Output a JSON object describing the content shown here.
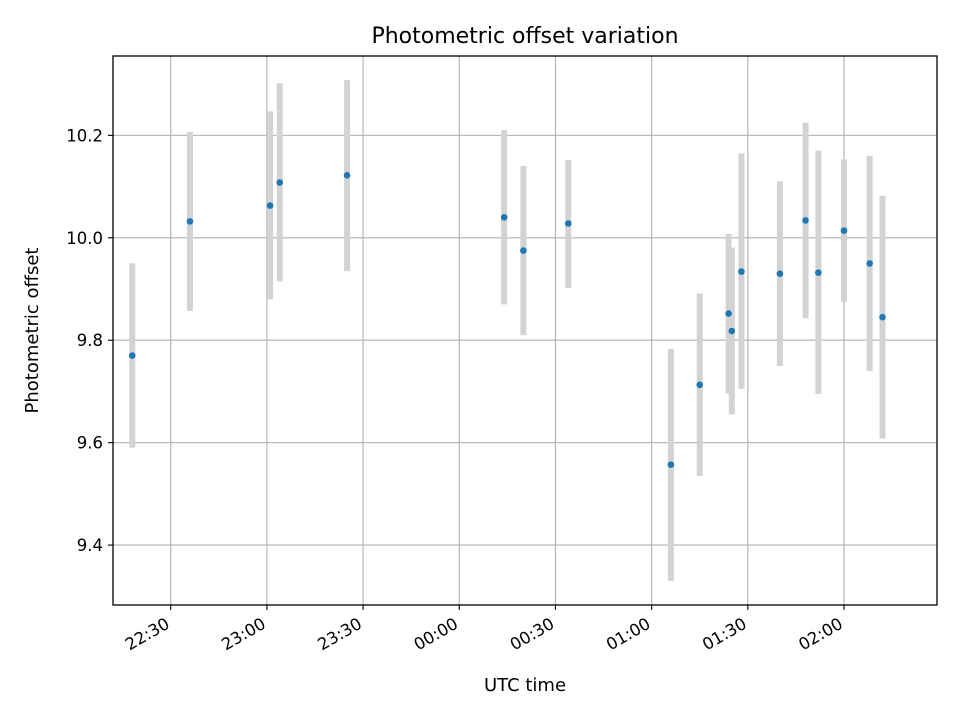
{
  "chart_data": {
    "type": "scatter",
    "title": "Photometric offset variation",
    "xlabel": "UTC time",
    "ylabel": "Photometric offset",
    "x_unit": "UTC time (HH:MM)",
    "xlim": [
      "22:12",
      "02:29"
    ],
    "ylim": [
      9.283,
      10.355
    ],
    "x_ticks": [
      "22:30",
      "23:00",
      "23:30",
      "00:00",
      "00:30",
      "01:00",
      "01:30",
      "02:00"
    ],
    "y_ticks": [
      "9.4",
      "9.6",
      "9.8",
      "10.0",
      "10.2"
    ],
    "grid": true,
    "point_color": "#1f77b4",
    "errorbar_color": "#d3d3d3",
    "points": [
      {
        "x": "22:18",
        "y": 9.77,
        "ylo": 9.59,
        "yhi": 9.95
      },
      {
        "x": "22:36",
        "y": 10.032,
        "ylo": 9.857,
        "yhi": 10.207
      },
      {
        "x": "23:01",
        "y": 10.063,
        "ylo": 9.88,
        "yhi": 10.247
      },
      {
        "x": "23:04",
        "y": 10.108,
        "ylo": 9.915,
        "yhi": 10.302
      },
      {
        "x": "23:25",
        "y": 10.122,
        "ylo": 9.935,
        "yhi": 10.308
      },
      {
        "x": "00:14",
        "y": 10.04,
        "ylo": 9.87,
        "yhi": 10.21
      },
      {
        "x": "00:20",
        "y": 9.975,
        "ylo": 9.81,
        "yhi": 10.14
      },
      {
        "x": "00:34",
        "y": 10.028,
        "ylo": 9.902,
        "yhi": 10.152
      },
      {
        "x": "01:06",
        "y": 9.557,
        "ylo": 9.33,
        "yhi": 9.783
      },
      {
        "x": "01:15",
        "y": 9.713,
        "ylo": 9.535,
        "yhi": 9.891
      },
      {
        "x": "01:24",
        "y": 9.852,
        "ylo": 9.696,
        "yhi": 10.008
      },
      {
        "x": "01:25",
        "y": 9.818,
        "ylo": 9.655,
        "yhi": 9.981
      },
      {
        "x": "01:28",
        "y": 9.934,
        "ylo": 9.705,
        "yhi": 10.165
      },
      {
        "x": "01:40",
        "y": 9.93,
        "ylo": 9.75,
        "yhi": 10.11
      },
      {
        "x": "01:48",
        "y": 10.034,
        "ylo": 9.843,
        "yhi": 10.225
      },
      {
        "x": "01:52",
        "y": 9.932,
        "ylo": 9.695,
        "yhi": 10.17
      },
      {
        "x": "02:00",
        "y": 10.014,
        "ylo": 9.875,
        "yhi": 10.153
      },
      {
        "x": "02:08",
        "y": 9.95,
        "ylo": 9.74,
        "yhi": 10.16
      },
      {
        "x": "02:12",
        "y": 9.845,
        "ylo": 9.608,
        "yhi": 10.082
      }
    ]
  }
}
